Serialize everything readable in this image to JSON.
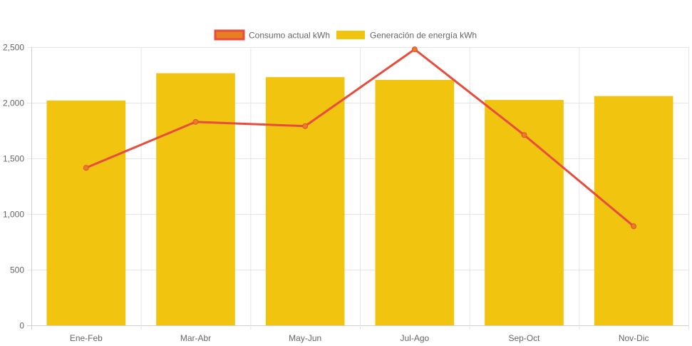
{
  "chart_data": {
    "type": "bar",
    "categories": [
      "Ene-Feb",
      "Mar-Abr",
      "May-Jun",
      "Jul-Ago",
      "Sep-Oct",
      "Nov-Dic"
    ],
    "series": [
      {
        "name": "Consumo actual kWh",
        "type": "line",
        "values": [
          1415,
          1828,
          1790,
          2480,
          1710,
          890
        ],
        "color": "#e74c3c",
        "fill": "#e67e22"
      },
      {
        "name": "Generación de energía kWh",
        "type": "bar",
        "values": [
          2020,
          2265,
          2230,
          2205,
          2025,
          2060
        ],
        "color": "#f1c40f"
      }
    ],
    "ylim": [
      0,
      2500
    ],
    "yticks": [
      "0",
      "500",
      "1,000",
      "1,500",
      "2,000",
      "2,500"
    ],
    "ytick_values": [
      0,
      500,
      1000,
      1500,
      2000,
      2500
    ],
    "grid": true,
    "legend_position": "top",
    "title": "",
    "xlabel": "",
    "ylabel": ""
  }
}
